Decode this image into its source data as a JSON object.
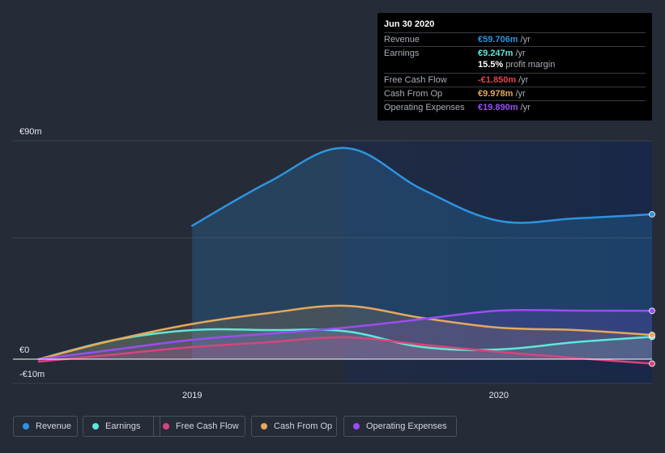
{
  "tooltip": {
    "date": "Jun 30 2020",
    "rows": [
      {
        "label": "Revenue",
        "value": "€59.706m",
        "unit": "/yr"
      },
      {
        "label": "Earnings",
        "value": "€9.247m",
        "unit": "/yr"
      },
      {
        "label": "Free Cash Flow",
        "value": "-€1.850m",
        "unit": "/yr"
      },
      {
        "label": "Cash From Op",
        "value": "€9.978m",
        "unit": "/yr"
      },
      {
        "label": "Operating Expenses",
        "value": "€19.890m",
        "unit": "/yr"
      }
    ],
    "margin_value": "15.5%",
    "margin_label": "profit margin"
  },
  "legend": [
    "Revenue",
    "Earnings",
    "Free Cash Flow",
    "Cash From Op",
    "Operating Expenses"
  ],
  "colors": {
    "Revenue": "#2d94e0",
    "Earnings": "#5ee8d8",
    "Free Cash Flow": "#d6457c",
    "Cash From Op": "#e6a85c",
    "Operating Expenses": "#9a4ef0",
    "negative": "#e8404c"
  },
  "chart_data": {
    "type": "area",
    "title": "",
    "xlabel": "",
    "ylabel": "",
    "y_ticks": [
      "€90m",
      "€0",
      "-€10m"
    ],
    "y_tick_values": [
      90,
      0,
      -10
    ],
    "ylim": [
      -10,
      90
    ],
    "x_ticks": [
      "2019",
      "2020"
    ],
    "x_tick_values": [
      2019.0,
      2020.0
    ],
    "xlim": [
      2018.5,
      2020.5
    ],
    "highlight_start": 2019.5,
    "series": [
      {
        "name": "Revenue",
        "x": [
          2019.0,
          2019.25,
          2019.5,
          2019.75,
          2020.0,
          2020.25,
          2020.5
        ],
        "values": [
          55,
          73,
          87,
          70,
          57,
          58,
          59.7
        ]
      },
      {
        "name": "Earnings",
        "x": [
          2018.5,
          2018.75,
          2019.0,
          2019.25,
          2019.5,
          2019.75,
          2020.0,
          2020.25,
          2020.5
        ],
        "values": [
          0,
          8,
          12,
          12,
          11.5,
          5,
          4,
          7,
          9.2
        ]
      },
      {
        "name": "Free Cash Flow",
        "x": [
          2018.5,
          2018.75,
          2019.0,
          2019.25,
          2019.5,
          2019.75,
          2020.0,
          2020.25,
          2020.5
        ],
        "values": [
          -1,
          2,
          5,
          7,
          9,
          6,
          3,
          0.5,
          -1.85
        ]
      },
      {
        "name": "Cash From Op",
        "x": [
          2018.5,
          2018.75,
          2019.0,
          2019.25,
          2019.5,
          2019.75,
          2020.0,
          2020.25,
          2020.5
        ],
        "values": [
          0,
          8,
          14.5,
          19,
          22,
          17,
          13,
          12,
          10
        ]
      },
      {
        "name": "Operating Expenses",
        "x": [
          2018.5,
          2018.75,
          2019.0,
          2019.25,
          2019.5,
          2019.75,
          2020.0,
          2020.25,
          2020.5
        ],
        "values": [
          0,
          4,
          8,
          10.5,
          13,
          16.5,
          20,
          20,
          19.9
        ]
      }
    ]
  }
}
